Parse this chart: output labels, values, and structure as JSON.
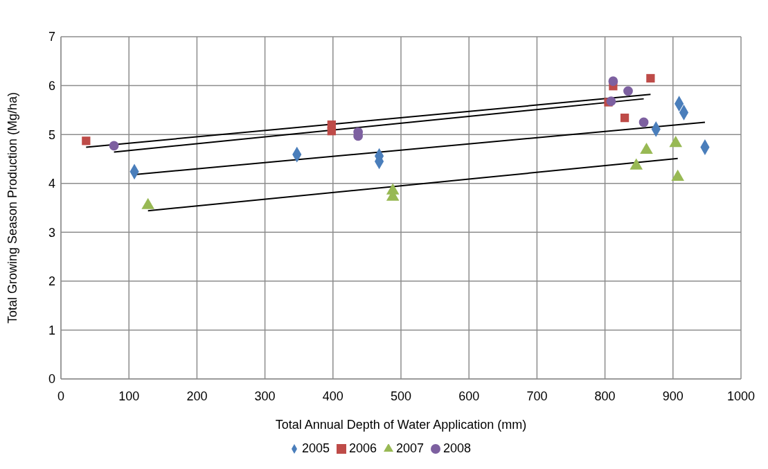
{
  "chart_data": {
    "type": "scatter",
    "xlabel": "Total Annual Depth of Water Application (mm)",
    "ylabel": "Total Growing Season Production (Mg/ha)",
    "xlim": [
      0,
      1000
    ],
    "xticks": [
      0,
      100,
      200,
      300,
      400,
      500,
      600,
      700,
      800,
      900,
      1000
    ],
    "ylim": [
      0,
      7
    ],
    "yticks": [
      0,
      1,
      2,
      3,
      4,
      5,
      6,
      7
    ],
    "grid": true,
    "legend": "bottom",
    "series": [
      {
        "name": "2005",
        "color": "#4a7ebb",
        "marker": "diamond",
        "x": [
          108,
          347,
          468,
          468,
          875,
          909,
          916,
          947
        ],
        "values": [
          4.24,
          4.59,
          4.56,
          4.45,
          5.11,
          5.63,
          5.45,
          4.74
        ]
      },
      {
        "name": "2006",
        "color": "#be4b48",
        "marker": "square",
        "x": [
          37,
          398,
          398,
          805,
          812,
          829,
          867
        ],
        "values": [
          4.87,
          5.2,
          5.07,
          5.66,
          5.99,
          5.34,
          6.15
        ]
      },
      {
        "name": "2007",
        "color": "#98b954",
        "marker": "triangle",
        "x": [
          128,
          488,
          488,
          846,
          861,
          904,
          907
        ],
        "values": [
          3.55,
          3.85,
          3.72,
          4.36,
          4.68,
          4.82,
          4.13
        ]
      },
      {
        "name": "2008",
        "color": "#7d60a0",
        "marker": "circle",
        "x": [
          78,
          437,
          437,
          809,
          812,
          834,
          857
        ],
        "values": [
          4.77,
          5.05,
          4.97,
          5.68,
          6.09,
          5.89,
          5.25
        ]
      },
      {
        "type": "line",
        "color": "#000000",
        "marker": "none",
        "x": [
          37,
          867
        ],
        "values": [
          4.74,
          5.82
        ]
      },
      {
        "type": "line",
        "color": "#000000",
        "marker": "none",
        "x": [
          78,
          857
        ],
        "values": [
          4.64,
          5.73
        ]
      },
      {
        "type": "line",
        "color": "#000000",
        "marker": "none",
        "x": [
          108,
          947
        ],
        "values": [
          4.18,
          5.25
        ]
      },
      {
        "type": "line",
        "color": "#000000",
        "marker": "none",
        "x": [
          128,
          907
        ],
        "values": [
          3.44,
          4.51
        ]
      }
    ]
  }
}
